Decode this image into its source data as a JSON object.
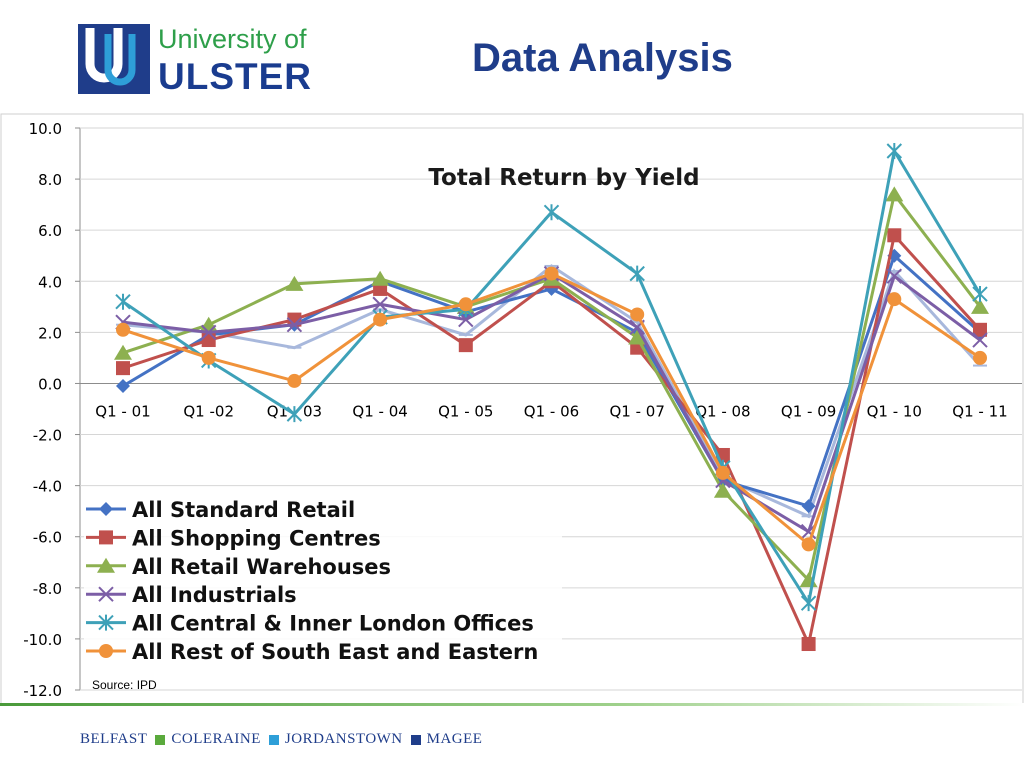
{
  "logo": {
    "line1": "University of",
    "line2": "ULSTER"
  },
  "slide_title": "Data Analysis",
  "source_note": "Source: IPD",
  "footer": {
    "campuses": [
      "BELFAST",
      "COLERAINE",
      "JORDANSTOWN",
      "MAGEE"
    ],
    "square_colors": [
      "#5aaa3c",
      "#2e9fd8",
      "#1f3d8a"
    ]
  },
  "chart_data": {
    "type": "line",
    "title": "Total Return by Yield",
    "categories": [
      "Q1 - 01",
      "Q1 -02",
      "Q1 - 03",
      "Q1 - 04",
      "Q1 - 05",
      "Q1 - 06",
      "Q1 - 07",
      "Q1 - 08",
      "Q1 - 09",
      "Q1 - 10",
      "Q1 - 11"
    ],
    "ylim": [
      -12,
      10
    ],
    "yticks": [
      "10.0",
      "8.0",
      "6.0",
      "4.0",
      "2.0",
      "0.0",
      "-2.0",
      "-4.0",
      "-6.0",
      "-8.0",
      "-10.0",
      "-12.0"
    ],
    "ytick_values": [
      10,
      8,
      6,
      4,
      2,
      0,
      -2,
      -4,
      -6,
      -8,
      -10,
      -12
    ],
    "grid": true,
    "legend_position": "bottom-left",
    "series": [
      {
        "name": "All Standard Retail",
        "color": "#4472c4",
        "marker": "diamond",
        "values": [
          -0.1,
          1.9,
          2.3,
          4.0,
          2.8,
          3.7,
          2.0,
          -3.8,
          -4.8,
          5.0,
          2.0
        ]
      },
      {
        "name": "All Shopping Centres",
        "color": "#c0504d",
        "marker": "square",
        "values": [
          0.6,
          1.7,
          2.5,
          3.7,
          1.5,
          4.0,
          1.4,
          -2.8,
          -10.2,
          5.8,
          2.1
        ]
      },
      {
        "name": "All Retail Warehouses",
        "color": "#8db050",
        "marker": "triangle",
        "values": [
          1.2,
          2.3,
          3.9,
          4.1,
          3.0,
          4.1,
          1.8,
          -4.2,
          -7.7,
          7.4,
          3.0
        ]
      },
      {
        "name": "All Industrials",
        "color": "#7c5ea6",
        "marker": "x",
        "values": [
          2.4,
          2.0,
          2.3,
          3.1,
          2.5,
          4.3,
          2.2,
          -3.8,
          -5.8,
          4.2,
          1.7
        ]
      },
      {
        "name": "All Central & Inner London Offices",
        "color": "#3ea1b8",
        "marker": "star",
        "values": [
          3.2,
          0.9,
          -1.2,
          2.6,
          2.9,
          6.7,
          4.3,
          -3.3,
          -8.6,
          9.1,
          3.5
        ]
      },
      {
        "name": "All Rest of South East and Eastern",
        "color": "#f0923a",
        "marker": "circle",
        "values": [
          2.1,
          1.0,
          0.1,
          2.5,
          3.1,
          4.3,
          2.7,
          -3.5,
          -6.3,
          3.3,
          1.0
        ]
      }
    ],
    "extra_series_color": "#a8b8dc",
    "extra_series_values": [
      2.3,
      2.0,
      1.4,
      2.9,
      1.9,
      4.6,
      2.4,
      -3.7,
      -5.2,
      4.4,
      0.7
    ]
  }
}
